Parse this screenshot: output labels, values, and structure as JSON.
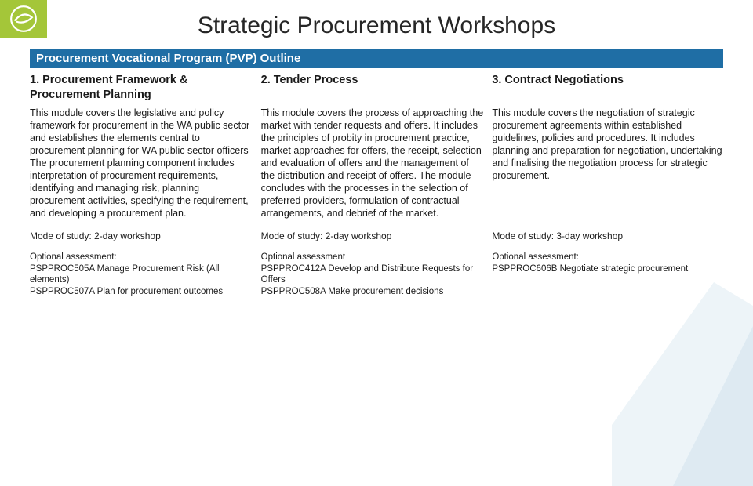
{
  "logo_bg": "#a4c639",
  "title": "Strategic Procurement Workshops",
  "band": "Procurement Vocational Program (PVP) Outline",
  "band_bg": "#1f6ea5",
  "columns": [
    {
      "head": "1. Procurement Framework & Procurement Planning",
      "body": "This module covers the legislative and policy framework for procurement in the WA public sector and establishes the elements central to procurement planning for WA public sector officers The procurement planning component includes interpretation of procurement requirements, identifying and managing risk, planning procurement activities, specifying the requirement, and developing a procurement plan.",
      "mode": "Mode of study: 2-day workshop",
      "assess": "Optional assessment:\nPSPPROC505A Manage Procurement Risk (All elements)\nPSPPROC507A Plan for procurement outcomes"
    },
    {
      "head": "2. Tender Process",
      "body": "This module covers the process of approaching the market with tender requests and offers. It includes the principles of probity in procurement practice, market approaches for offers, the receipt, selection and evaluation of offers and the management of the distribution and receipt of offers. The module concludes with the processes in the selection of preferred providers, formulation of contractual arrangements, and debrief of the market.",
      "mode": "Mode of study: 2-day workshop",
      "assess": "Optional assessment\nPSPPROC412A Develop and Distribute Requests for Offers\nPSPPROC508A Make procurement decisions"
    },
    {
      "head": "3. Contract Negotiations",
      "body": "This module covers the negotiation of strategic procurement agreements within established guidelines, policies and procedures. It includes planning and preparation for negotiation, undertaking and finalising the negotiation process for strategic procurement.",
      "mode": "Mode of study: 3-day workshop",
      "assess": "Optional assessment:\nPSPPROC606B Negotiate strategic procurement"
    }
  ]
}
